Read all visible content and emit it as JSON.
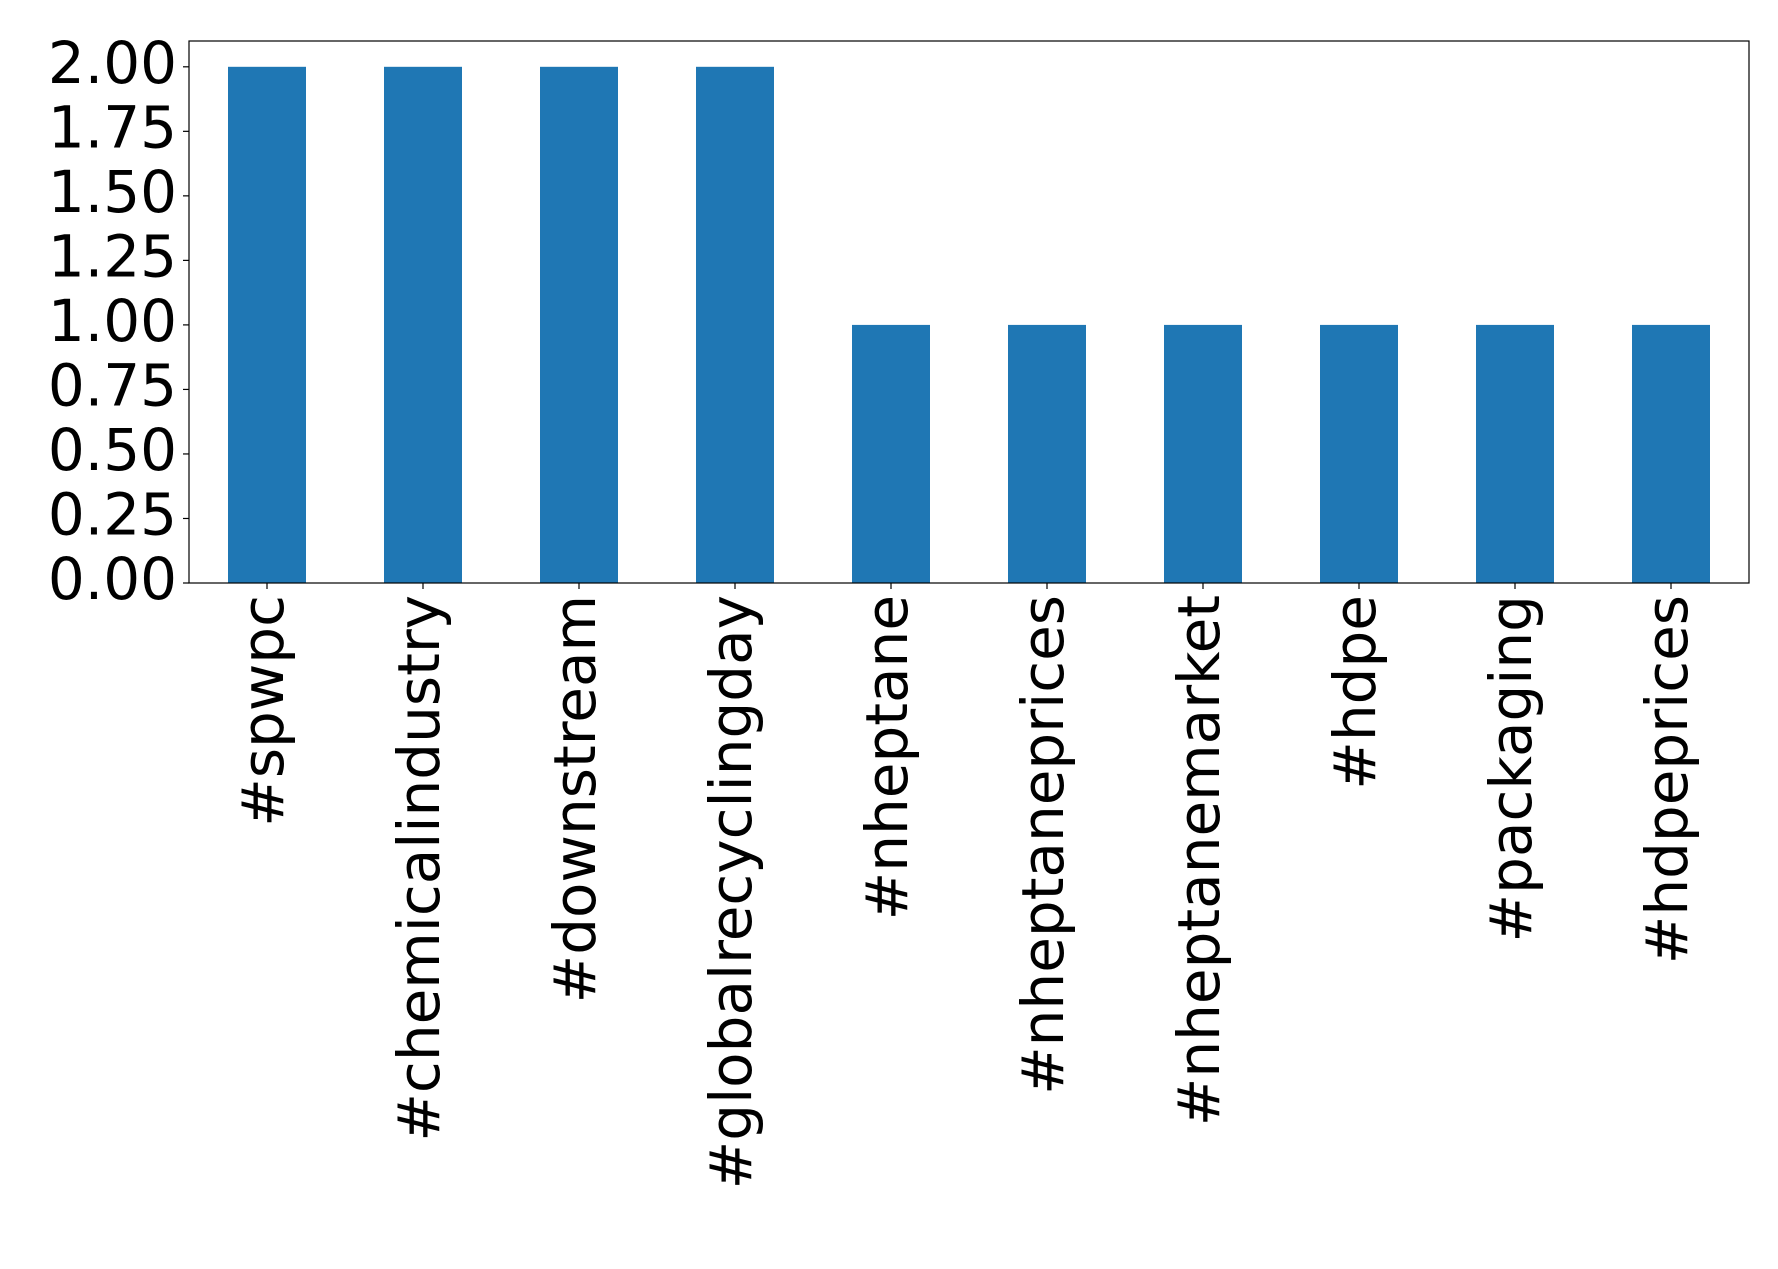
{
  "chart_data": {
    "type": "bar",
    "categories": [
      "#spwpc",
      "#chemicalindustry",
      "#downstream",
      "#globalrecyclingday",
      "#nheptane",
      "#nheptaneprices",
      "#nheptanemarket",
      "#hdpe",
      "#packaging",
      "#hdpeprices"
    ],
    "values": [
      2,
      2,
      2,
      2,
      1,
      1,
      1,
      1,
      1,
      1
    ],
    "color": "#1f77b4",
    "ylim": [
      0,
      2.1
    ],
    "yticks": [
      {
        "value": 0,
        "label": "0.00"
      },
      {
        "value": 0.25,
        "label": "0.25"
      },
      {
        "value": 0.5,
        "label": "0.50"
      },
      {
        "value": 0.75,
        "label": "0.75"
      },
      {
        "value": 1,
        "label": "1.00"
      },
      {
        "value": 1.25,
        "label": "1.25"
      },
      {
        "value": 1.5,
        "label": "1.50"
      },
      {
        "value": 1.75,
        "label": "1.75"
      },
      {
        "value": 2,
        "label": "2.00"
      }
    ],
    "grid": false
  }
}
